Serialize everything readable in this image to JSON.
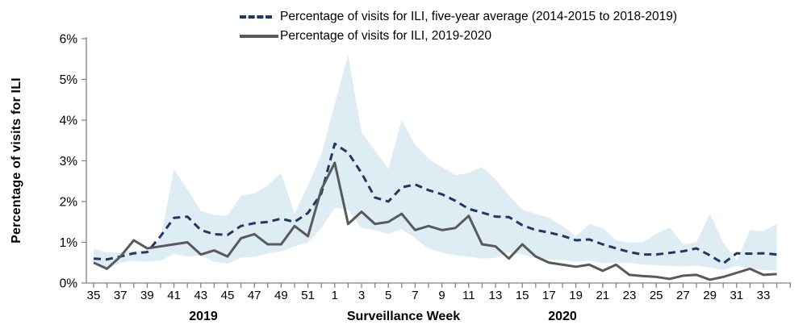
{
  "legend": {
    "items": [
      {
        "label": "Percentage of visits for ILI, five-year average (2014-2015 to 2018-2019)",
        "style": "dashed",
        "color": "#1f3864"
      },
      {
        "label": "Percentage of visits for ILI, 2019-2020",
        "style": "solid",
        "color": "#58595b"
      }
    ]
  },
  "axes": {
    "y_title": "Percentage of visits for ILI",
    "x_title": "Surveillance Week",
    "year_left": "2019",
    "year_right": "2020",
    "y_tick_labels": [
      "0%",
      "1%",
      "2%",
      "3%",
      "4%",
      "5%",
      "6%"
    ]
  },
  "chart_data": {
    "type": "line",
    "title": "",
    "xlabel": "Surveillance Week",
    "ylabel": "Percentage of visits for ILI",
    "ylim": [
      0,
      6
    ],
    "y_unit": "%",
    "grid": false,
    "legend_position": "top",
    "x_weeks": [
      35,
      36,
      37,
      38,
      39,
      40,
      41,
      42,
      43,
      44,
      45,
      46,
      47,
      48,
      49,
      50,
      51,
      52,
      1,
      2,
      3,
      4,
      5,
      6,
      7,
      8,
      9,
      10,
      11,
      12,
      13,
      14,
      15,
      16,
      17,
      18,
      19,
      20,
      21,
      22,
      23,
      24,
      25,
      26,
      27,
      28,
      29,
      30,
      31,
      32,
      33,
      34
    ],
    "x_labeled_weeks": [
      35,
      37,
      39,
      41,
      43,
      45,
      47,
      49,
      51,
      1,
      3,
      5,
      7,
      9,
      11,
      13,
      15,
      17,
      19,
      21,
      23,
      25,
      27,
      29,
      31,
      33
    ],
    "series": [
      {
        "name": "Percentage of visits for ILI, five-year average (2014-2015 to 2018-2019)",
        "style": "dashed",
        "color": "#1f3864",
        "values": [
          0.6,
          0.58,
          0.65,
          0.73,
          0.76,
          1.15,
          1.6,
          1.63,
          1.3,
          1.2,
          1.18,
          1.4,
          1.47,
          1.5,
          1.58,
          1.5,
          1.72,
          2.2,
          3.42,
          3.2,
          2.7,
          2.1,
          2.0,
          2.35,
          2.42,
          2.28,
          2.18,
          2.02,
          1.82,
          1.73,
          1.63,
          1.62,
          1.42,
          1.3,
          1.24,
          1.16,
          1.05,
          1.07,
          0.95,
          0.85,
          0.76,
          0.7,
          0.7,
          0.74,
          0.78,
          0.85,
          0.68,
          0.48,
          0.73,
          0.72,
          0.73,
          0.7
        ]
      },
      {
        "name": "Percentage of visits for ILI, 2019-2020",
        "style": "solid",
        "color": "#58595b",
        "values": [
          0.5,
          0.35,
          0.65,
          1.05,
          0.85,
          0.9,
          0.95,
          1.0,
          0.7,
          0.8,
          0.65,
          1.1,
          1.2,
          0.95,
          0.95,
          1.4,
          1.15,
          2.3,
          2.95,
          1.45,
          1.75,
          1.45,
          1.5,
          1.7,
          1.3,
          1.4,
          1.3,
          1.35,
          1.65,
          0.95,
          0.9,
          0.6,
          0.95,
          0.65,
          0.5,
          0.45,
          0.4,
          0.45,
          0.3,
          0.45,
          0.2,
          0.17,
          0.15,
          0.1,
          0.18,
          0.2,
          0.08,
          0.15,
          0.25,
          0.35,
          0.2,
          0.22
        ]
      }
    ],
    "band": {
      "name": "five-year min-max range",
      "color": "#deecf4",
      "upper": [
        0.85,
        0.75,
        0.75,
        0.8,
        0.78,
        1.1,
        2.8,
        2.3,
        1.77,
        1.67,
        1.65,
        2.14,
        2.2,
        2.4,
        2.7,
        1.7,
        2.4,
        3.15,
        4.4,
        5.6,
        3.7,
        3.25,
        2.8,
        4.0,
        3.4,
        3.05,
        2.85,
        2.65,
        2.7,
        2.85,
        2.55,
        2.15,
        1.8,
        1.7,
        1.6,
        1.4,
        1.15,
        1.45,
        1.35,
        1.05,
        1.0,
        1.0,
        1.2,
        1.37,
        0.95,
        1.0,
        1.7,
        1.0,
        0.55,
        1.3,
        1.27,
        1.45
      ],
      "lower": [
        0.5,
        0.33,
        0.5,
        0.55,
        0.52,
        0.55,
        0.72,
        0.65,
        0.68,
        0.52,
        0.48,
        0.62,
        0.64,
        0.72,
        0.78,
        0.9,
        1.0,
        1.35,
        1.85,
        1.8,
        1.35,
        1.3,
        1.2,
        1.32,
        1.1,
        0.85,
        0.75,
        0.68,
        0.64,
        0.6,
        0.62,
        0.75,
        0.7,
        0.62,
        0.57,
        0.57,
        0.52,
        0.55,
        0.48,
        0.5,
        0.5,
        0.45,
        0.44,
        0.42,
        0.4,
        0.43,
        0.38,
        0.32,
        0.42,
        0.35,
        0.32,
        0.3
      ]
    },
    "axis_color": "#7f7f7f",
    "tick_label_color": "#000000"
  }
}
